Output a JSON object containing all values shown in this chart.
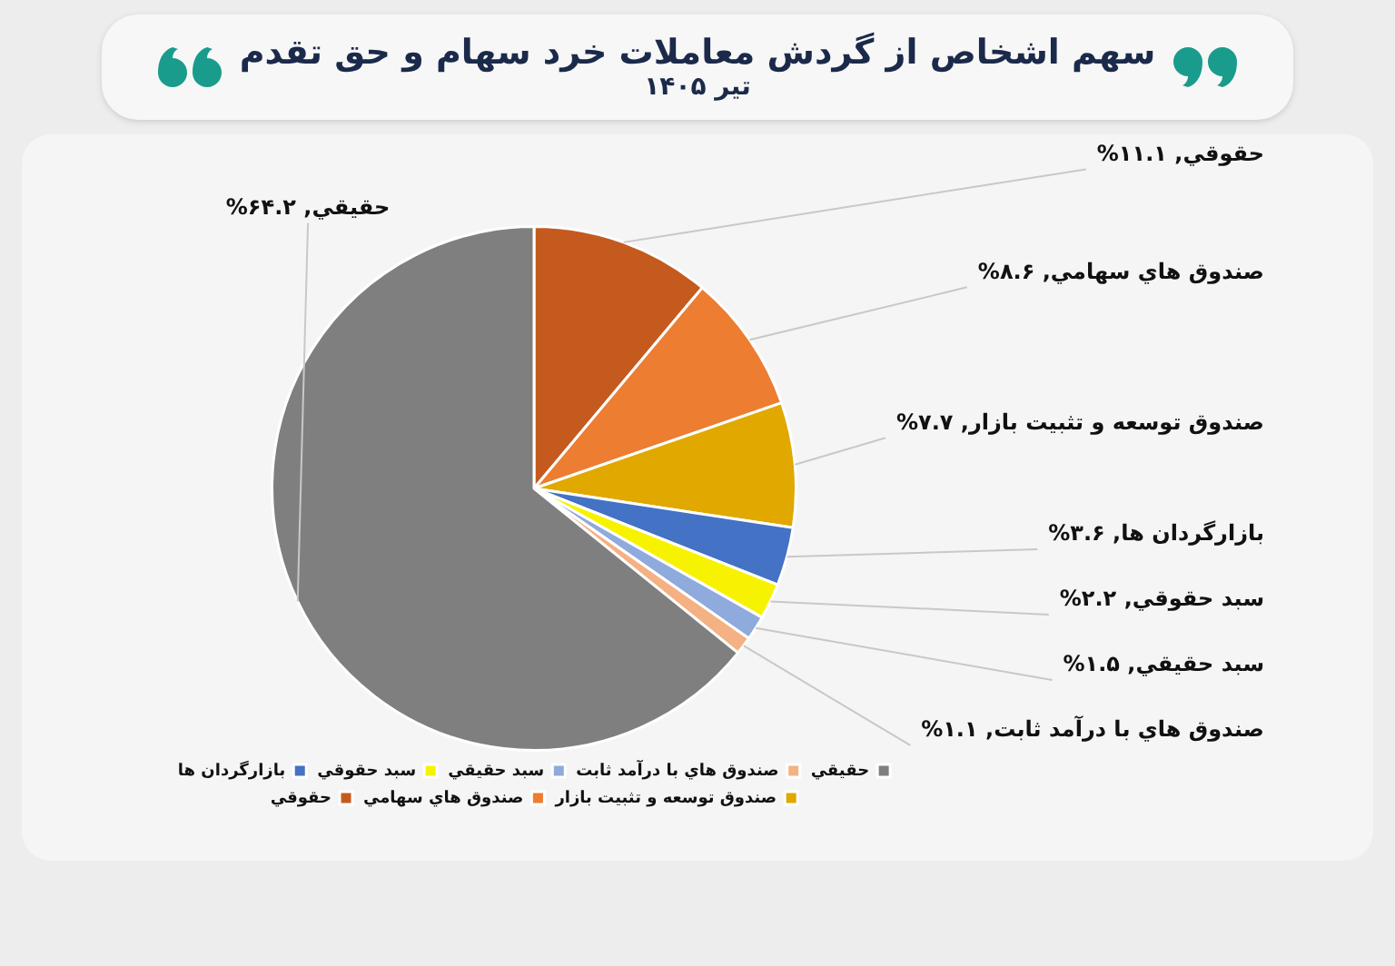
{
  "chart_data": {
    "type": "pie",
    "title": "سهم اشخاص از گردش معاملات خرد سهام و حق تقدم",
    "subtitle": "تیر ۱۴۰۵",
    "categories": [
      "حقوقي",
      "صندوق هاي سهامي",
      "صندوق توسعه و تثبيت بازار",
      "بازارگردان ها",
      "سبد حقوقي",
      "سبد حقيقي",
      "صندوق هاي با درآمد ثابت",
      "حقيقي"
    ],
    "values": [
      11.1,
      8.6,
      7.7,
      3.6,
      2.2,
      1.5,
      1.1,
      64.2
    ],
    "value_labels": [
      "حقوقي, ۱۱.۱%",
      "صندوق هاي سهامي, ۸.۶%",
      "صندوق توسعه و تثبيت بازار, ۷.۷%",
      "بازارگردان ها, ۳.۶%",
      "سبد حقوقي, ۲.۲%",
      "سبد حقيقي, ۱.۵%",
      "صندوق هاي با درآمد ثابت, ۱.۱%",
      "حقيقي, ۶۴.۲%"
    ],
    "colors": [
      "#c55a1e",
      "#ed7d31",
      "#e1a800",
      "#4472c4",
      "#f7f300",
      "#8faadc",
      "#f4b183",
      "#7f7f7f"
    ],
    "legend": "bottom"
  }
}
